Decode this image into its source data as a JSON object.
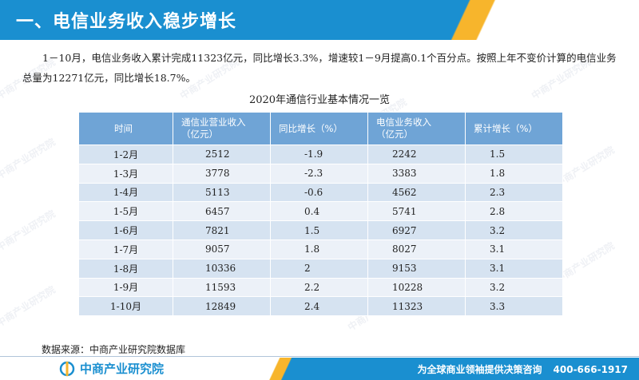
{
  "header": {
    "title": "一、电信业务收入稳步增长"
  },
  "paragraph": "1－10月，电信业务收入累计完成11323亿元，同比增长3.3%，增速较1－9月提高0.1个百分点。按照上年不变价计算的电信业务总量为12271亿元，同比增长18.7%。",
  "table": {
    "title": "2020年通信行业基本情况一览",
    "headers": [
      "时间",
      "通信业营业收入\n（亿元）",
      "同比增长（%）",
      "电信业务收入\n（亿元）",
      "累计增长（%）"
    ],
    "rows": [
      [
        "1-2月",
        "2512",
        "-1.9",
        "2242",
        "1.5"
      ],
      [
        "1-3月",
        "3778",
        "-2.3",
        "3383",
        "1.8"
      ],
      [
        "1-4月",
        "5113",
        "-0.6",
        "4562",
        "2.3"
      ],
      [
        "1-5月",
        "6457",
        "0.4",
        "5741",
        "2.8"
      ],
      [
        "1-6月",
        "7821",
        "1.5",
        "6927",
        "3.2"
      ],
      [
        "1-7月",
        "9057",
        "1.8",
        "8027",
        "3.1"
      ],
      [
        "1-8月",
        "10336",
        "2",
        "9153",
        "3.1"
      ],
      [
        "1-9月",
        "11593",
        "2.2",
        "10228",
        "3.2"
      ],
      [
        "1-10月",
        "12849",
        "2.4",
        "11323",
        "3.3"
      ]
    ]
  },
  "source": "数据来源：中商产业研究院数据库",
  "footer": {
    "logo_text": "中商产业研究院",
    "slogan": "为全球商业领袖提供决策咨询",
    "phone": "400-666-1917"
  },
  "watermark": "中商产业研究院",
  "colors": {
    "header_blue": "#1a8fd0",
    "accent_orange": "#f7b52c",
    "table_header": "#6fa4d6",
    "row_odd": "#d6e3f1",
    "row_even": "#ecf1f8"
  }
}
